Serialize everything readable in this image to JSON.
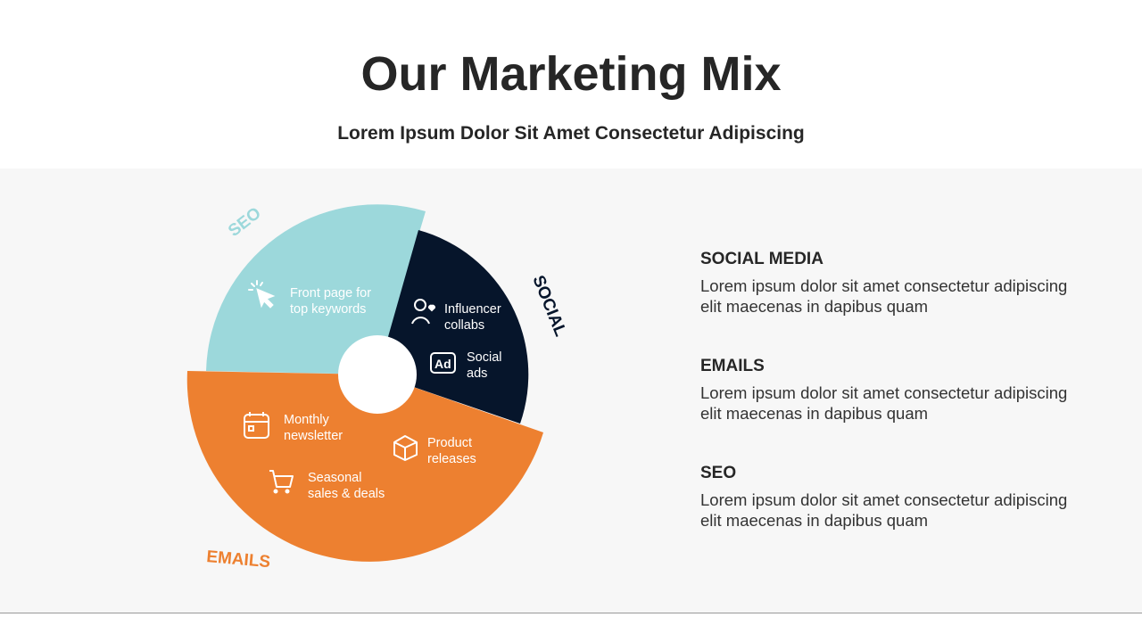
{
  "header": {
    "title": "Our Marketing Mix",
    "subtitle": "Lorem Ipsum Dolor Sit Amet Consectetur Adipiscing"
  },
  "diagram": {
    "colors": {
      "seo": "#9cd8db",
      "social": "#06152b",
      "emails": "#ed8030"
    },
    "segments": [
      {
        "label": "SEO",
        "items": [
          {
            "icon": "cursor-click-icon",
            "line1": "Front page for",
            "line2": "top keywords"
          }
        ]
      },
      {
        "label": "SOCIAL",
        "items": [
          {
            "icon": "user-heart-icon",
            "line1": "Influencer",
            "line2": "collabs"
          },
          {
            "icon": "ad-icon",
            "line1": "Social",
            "line2": "ads"
          }
        ]
      },
      {
        "label": "EMAILS",
        "items": [
          {
            "icon": "calendar-icon",
            "line1": "Monthly",
            "line2": "newsletter"
          },
          {
            "icon": "box-icon",
            "line1": "Product",
            "line2": "releases"
          },
          {
            "icon": "cart-icon",
            "line1": "Seasonal",
            "line2": "sales & deals"
          }
        ]
      }
    ]
  },
  "list": [
    {
      "heading": "SOCIAL MEDIA",
      "text": "Lorem ipsum dolor sit amet consectetur adipiscing elit maecenas in dapibus quam"
    },
    {
      "heading": "EMAILS",
      "text": "Lorem ipsum dolor sit amet consectetur adipiscing elit maecenas in dapibus quam"
    },
    {
      "heading": "SEO",
      "text": "Lorem ipsum dolor sit amet consectetur adipiscing elit maecenas in dapibus quam"
    }
  ]
}
